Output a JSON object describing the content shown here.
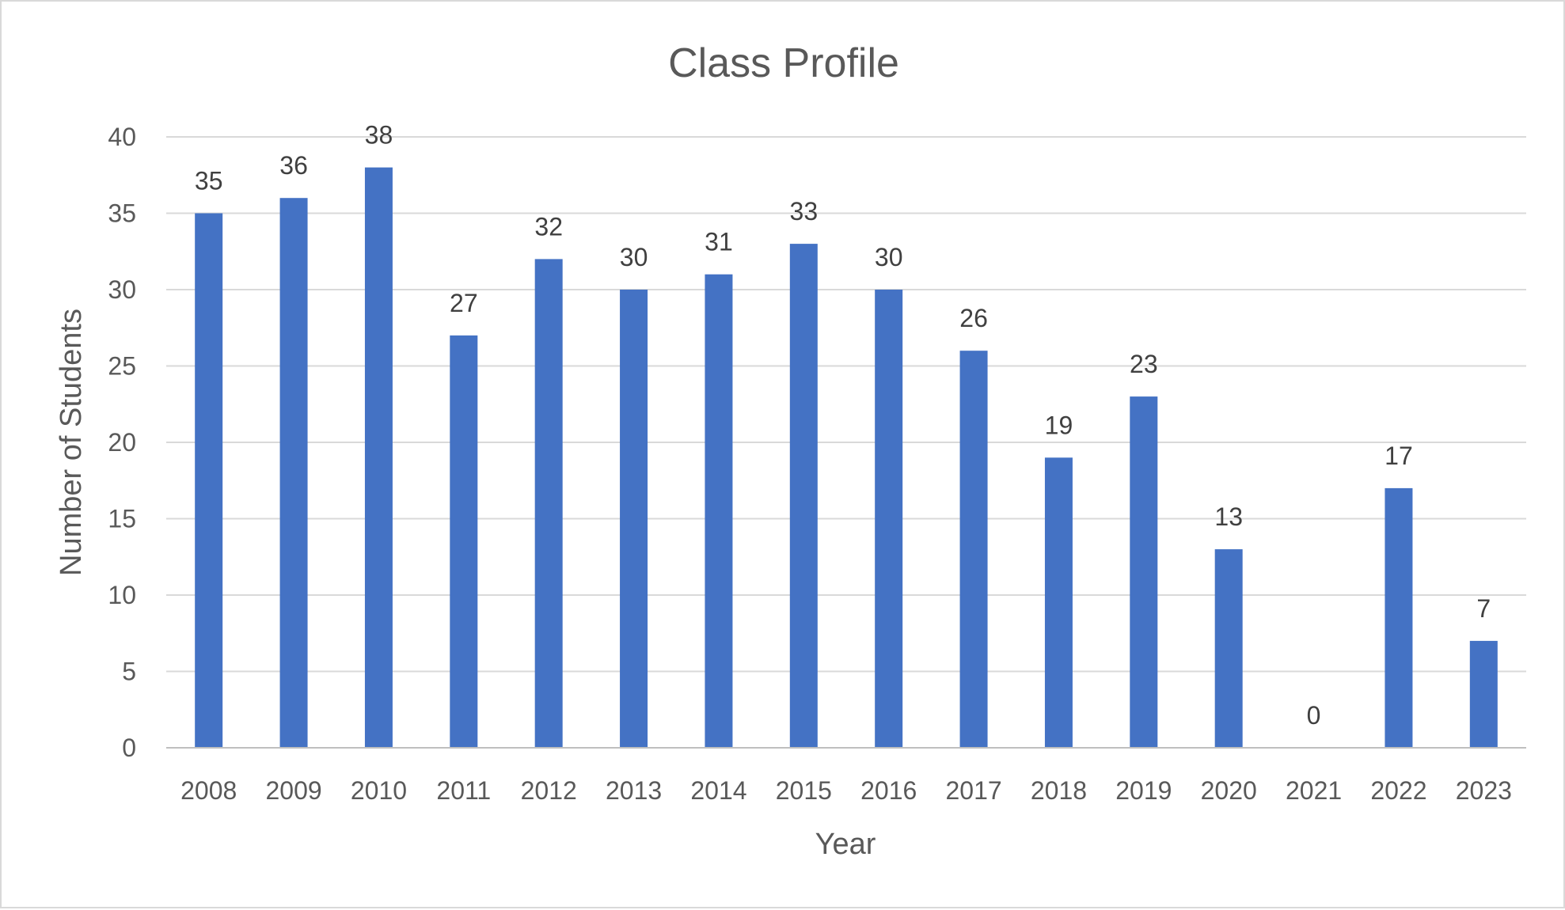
{
  "chart_data": {
    "type": "bar",
    "title": "Class Profile",
    "xlabel": "Year",
    "ylabel": "Number of Students",
    "categories": [
      "2008",
      "2009",
      "2010",
      "2011",
      "2012",
      "2013",
      "2014",
      "2015",
      "2016",
      "2017",
      "2018",
      "2019",
      "2020",
      "2021",
      "2022",
      "2023"
    ],
    "values": [
      35,
      36,
      38,
      27,
      32,
      30,
      31,
      33,
      30,
      26,
      19,
      23,
      13,
      0,
      17,
      7
    ],
    "ylim": [
      0,
      40
    ],
    "yticks": [
      0,
      5,
      10,
      15,
      20,
      25,
      30,
      35,
      40
    ],
    "grid": true,
    "data_labels": true,
    "legend": "none",
    "bar_color": "#4472c4"
  }
}
